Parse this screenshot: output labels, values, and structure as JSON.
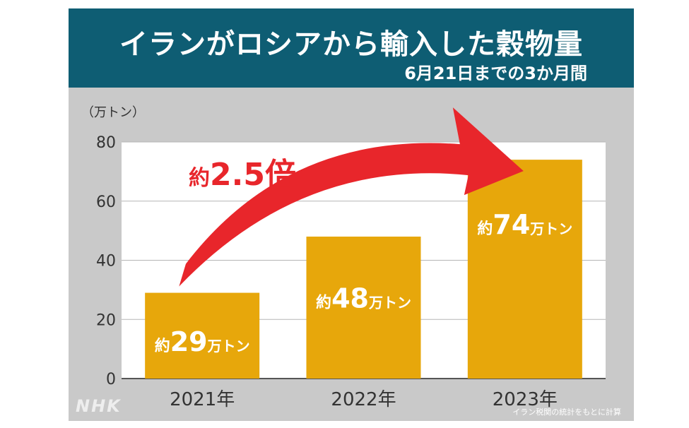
{
  "header": {
    "title": "イランがロシアから輸入した穀物量",
    "subtitle": "6月21日までの3か月間"
  },
  "chart_data": {
    "type": "bar",
    "unit_label": "（万トン）",
    "categories": [
      "2021年",
      "2022年",
      "2023年"
    ],
    "values": [
      29,
      48,
      74
    ],
    "bar_labels": [
      {
        "prefix": "約",
        "number": "29",
        "suffix": "万トン"
      },
      {
        "prefix": "約",
        "number": "48",
        "suffix": "万トン"
      },
      {
        "prefix": "約",
        "number": "74",
        "suffix": "万トン"
      }
    ],
    "ylim": [
      0,
      80
    ],
    "yticks": [
      "0",
      "20",
      "40",
      "60",
      "80"
    ],
    "grid": true,
    "annotation": {
      "prefix": "約",
      "value": "2.5倍"
    }
  },
  "colors": {
    "header_bg": "#0e5d73",
    "panel_bg": "#c9c9c9",
    "plot_bg": "#ffffff",
    "bar": "#e7a70b",
    "arrow": "#e8262b"
  },
  "footer": {
    "logo": "NHK",
    "source": "イラン税関の統計をもとに計算"
  }
}
